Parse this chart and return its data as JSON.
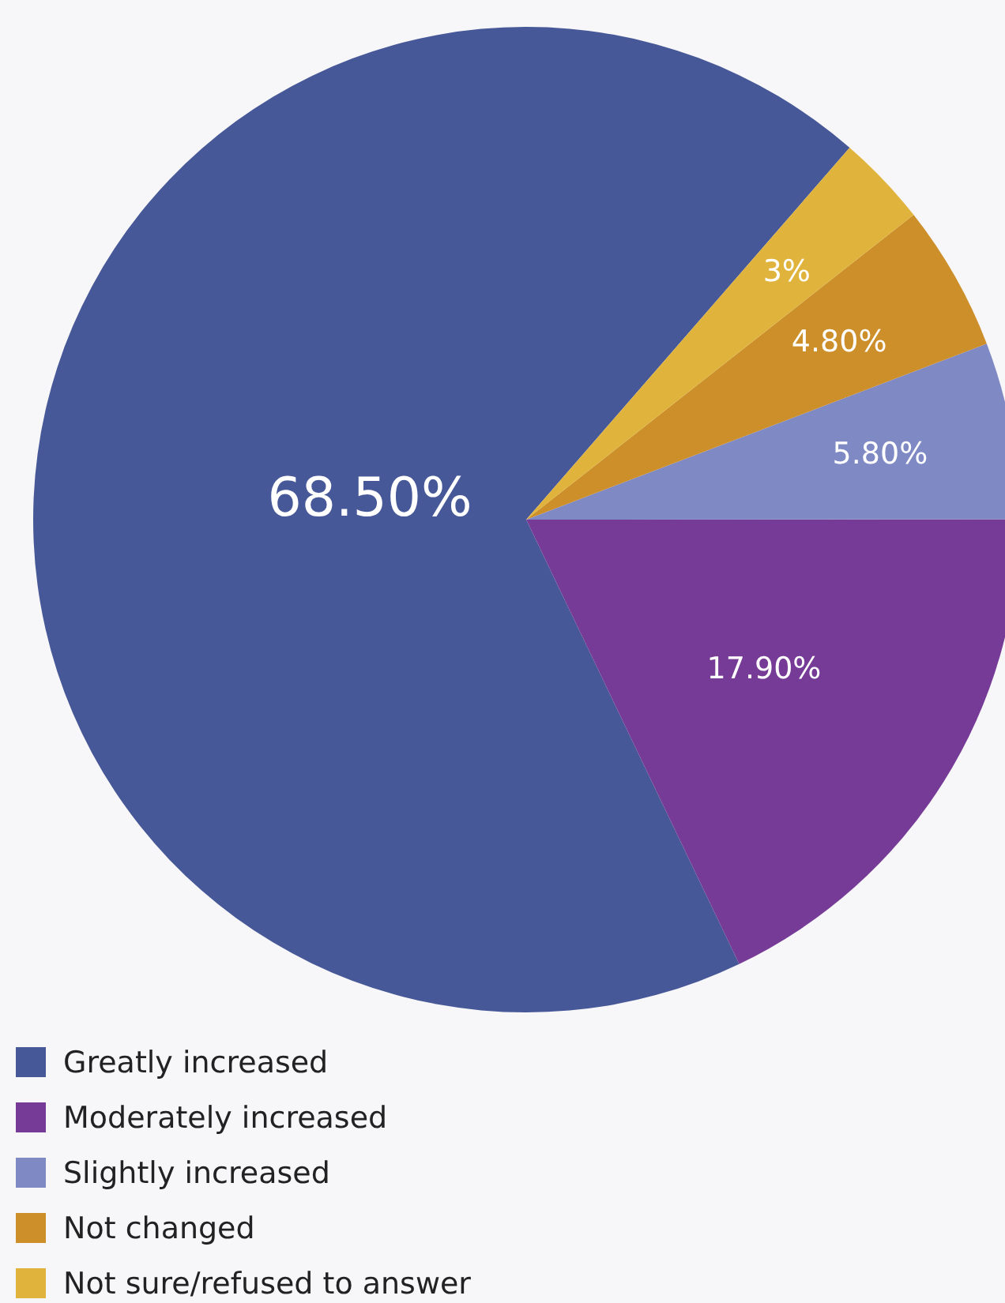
{
  "chart_data": {
    "type": "pie",
    "categories": [
      "Greatly increased",
      "Moderately increased",
      "Slightly increased",
      "Not changed",
      "Not sure/refused to answer"
    ],
    "values": [
      68.5,
      17.9,
      5.8,
      4.8,
      3
    ],
    "colors": [
      "#475898",
      "#763b96",
      "#7f89c4",
      "#cc8f29",
      "#e0b43c"
    ],
    "value_labels": [
      "68.50%",
      "17.90%",
      "5.80%",
      "4.80%",
      "3%"
    ],
    "legend": "bottom left"
  }
}
